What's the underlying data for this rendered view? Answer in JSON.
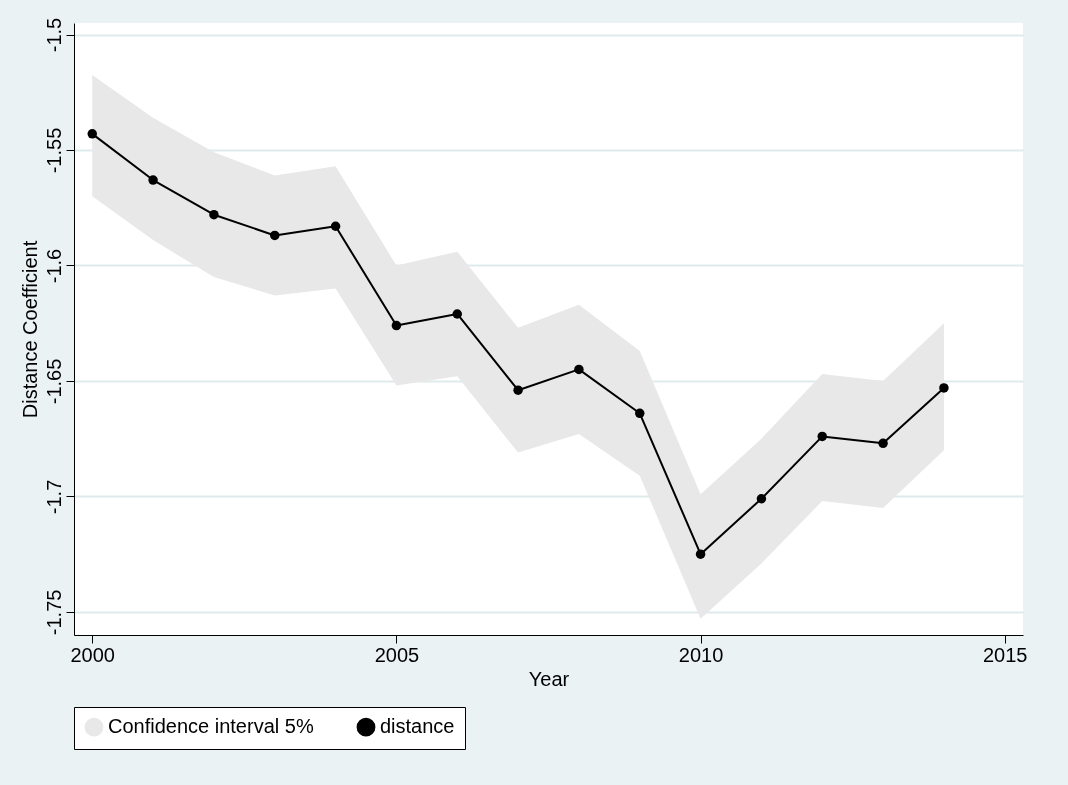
{
  "chart_data": {
    "type": "line",
    "xlabel": "Year",
    "ylabel": "Distance Coefficient",
    "x": [
      2000,
      2001,
      2002,
      2003,
      2004,
      2005,
      2006,
      2007,
      2008,
      2009,
      2010,
      2011,
      2012,
      2013,
      2014
    ],
    "series": [
      {
        "name": "distance",
        "color": "#000000",
        "values": [
          -1.543,
          -1.563,
          -1.578,
          -1.587,
          -1.583,
          -1.626,
          -1.621,
          -1.654,
          -1.645,
          -1.664,
          -1.725,
          -1.701,
          -1.674,
          -1.677,
          -1.653
        ],
        "lower": [
          -1.57,
          -1.589,
          -1.605,
          -1.613,
          -1.61,
          -1.652,
          -1.648,
          -1.681,
          -1.673,
          -1.691,
          -1.753,
          -1.729,
          -1.702,
          -1.705,
          -1.68
        ],
        "upper": [
          -1.5175,
          -1.536,
          -1.551,
          -1.561,
          -1.557,
          -1.6,
          -1.594,
          -1.627,
          -1.617,
          -1.637,
          -1.699,
          -1.675,
          -1.647,
          -1.65,
          -1.625
        ]
      }
    ],
    "annotations": [
      "Confidence interval 5%"
    ],
    "xlim": [
      1999.7,
      2015.3
    ],
    "xticks": [
      2000,
      2005,
      2010,
      2015
    ],
    "ylim": [
      -1.76,
      -1.495
    ],
    "yticks": [
      -1.75,
      -1.7,
      -1.65,
      -1.6,
      -1.55,
      -1.5
    ],
    "grid": "y",
    "legend": "bottom",
    "marker": "circle",
    "line_style": "solid"
  }
}
